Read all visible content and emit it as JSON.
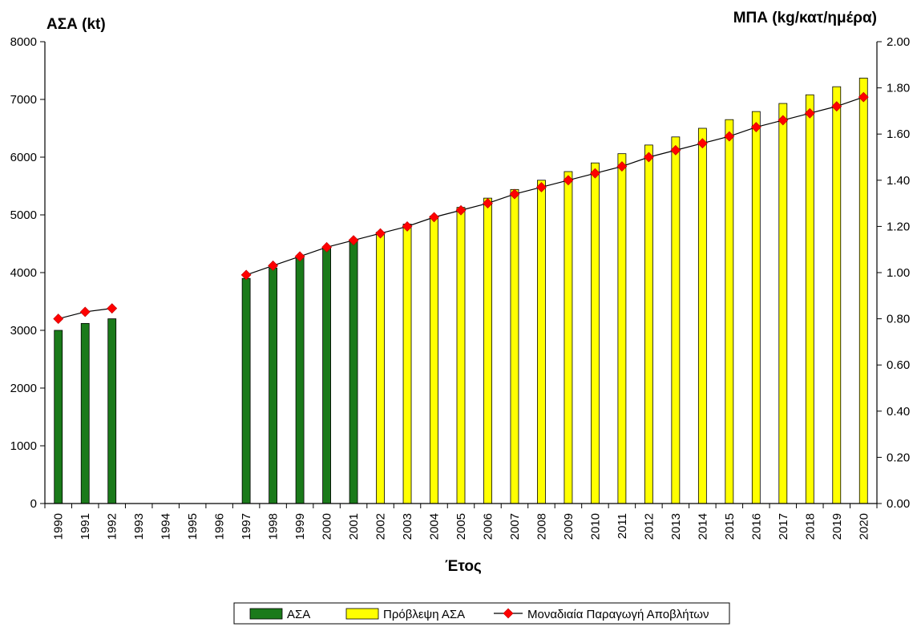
{
  "chart_data": {
    "type": "bar",
    "y_left_label": "ΑΣΑ (kt)",
    "y_right_label": "ΜΠΑ (kg/κατ/ημέρα)",
    "xlabel": "Έτος",
    "categories": [
      "1990",
      "1991",
      "1992",
      "1993",
      "1994",
      "1995",
      "1996",
      "1997",
      "1998",
      "1999",
      "2000",
      "2001",
      "2002",
      "2003",
      "2004",
      "2005",
      "2006",
      "2007",
      "2008",
      "2009",
      "2010",
      "2011",
      "2012",
      "2013",
      "2014",
      "2015",
      "2016",
      "2017",
      "2018",
      "2019",
      "2020"
    ],
    "y_left_ticks": [
      "0",
      "1000",
      "2000",
      "3000",
      "4000",
      "5000",
      "6000",
      "7000",
      "8000"
    ],
    "y_right_ticks": [
      "0.00",
      "0.20",
      "0.40",
      "0.60",
      "0.80",
      "1.00",
      "1.20",
      "1.40",
      "1.60",
      "1.80",
      "2.00"
    ],
    "ylim_left": [
      0,
      8000
    ],
    "ylim_right": [
      0,
      2.0
    ],
    "grid": false,
    "legend_position": "bottom",
    "series": [
      {
        "name": "ΑΣΑ",
        "type": "bar",
        "axis": "left",
        "color": "#1a7a1a",
        "values": [
          3000,
          3120,
          3200,
          null,
          null,
          null,
          null,
          3900,
          4080,
          4260,
          4440,
          4560,
          null,
          null,
          null,
          null,
          null,
          null,
          null,
          null,
          null,
          null,
          null,
          null,
          null,
          null,
          null,
          null,
          null,
          null,
          null
        ]
      },
      {
        "name": "Πρόβλεψη ΑΣΑ",
        "type": "bar",
        "axis": "left",
        "color": "#ffff00",
        "values": [
          null,
          null,
          null,
          null,
          null,
          null,
          null,
          null,
          null,
          null,
          null,
          null,
          4700,
          4840,
          4980,
          5130,
          5290,
          5440,
          5600,
          5750,
          5900,
          6060,
          6210,
          6350,
          6500,
          6650,
          6790,
          6930,
          7080,
          7220,
          7370
        ]
      },
      {
        "name": "Μοναδιαία Παραγωγή Αποβλήτων",
        "type": "line",
        "axis": "right",
        "color": "#ff0000",
        "values": [
          0.8,
          0.83,
          0.845,
          null,
          null,
          null,
          null,
          0.99,
          1.03,
          1.07,
          1.11,
          1.14,
          1.17,
          1.2,
          1.24,
          1.27,
          1.3,
          1.34,
          1.37,
          1.4,
          1.43,
          1.46,
          1.5,
          1.53,
          1.56,
          1.59,
          1.63,
          1.66,
          1.69,
          1.72,
          1.76
        ]
      }
    ]
  }
}
